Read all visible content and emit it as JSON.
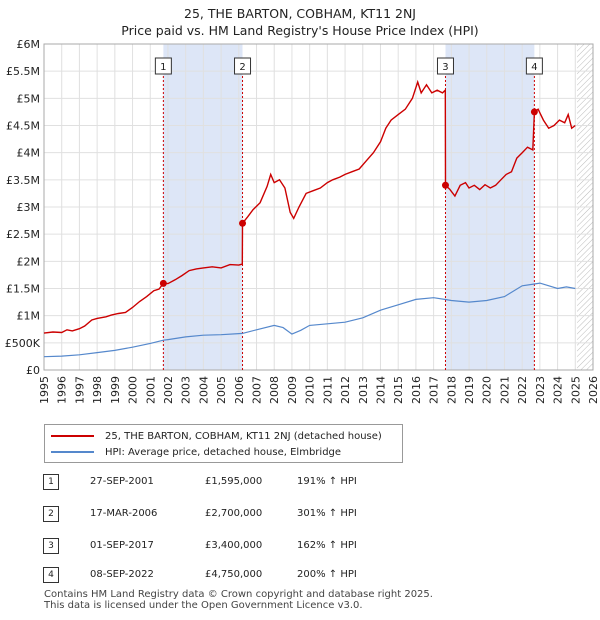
{
  "title_line1": "25, THE BARTON, COBHAM, KT11 2NJ",
  "title_line2": "Price paid vs. HM Land Registry's House Price Index (HPI)",
  "legend": {
    "property_label": "25, THE BARTON, COBHAM, KT11 2NJ (detached house)",
    "hpi_label": "HPI: Average price, detached house, Elmbridge"
  },
  "colors": {
    "property": "#cc0000",
    "hpi": "#5588cc",
    "shade": "#dde6f7",
    "grid": "#e0e0e0",
    "marker_line": "#cc0000"
  },
  "sales": [
    {
      "num": "1",
      "date": "27-SEP-2001",
      "price": "£1,595,000",
      "hpi": "191% ↑ HPI"
    },
    {
      "num": "2",
      "date": "17-MAR-2006",
      "price": "£2,700,000",
      "hpi": "301% ↑ HPI"
    },
    {
      "num": "3",
      "date": "01-SEP-2017",
      "price": "£3,400,000",
      "hpi": "162% ↑ HPI"
    },
    {
      "num": "4",
      "date": "08-SEP-2022",
      "price": "£4,750,000",
      "hpi": "200% ↑ HPI"
    }
  ],
  "footer_line1": "Contains HM Land Registry data © Crown copyright and database right 2025.",
  "footer_line2": "This data is licensed under the Open Government Licence v3.0.",
  "chart_data": {
    "type": "line",
    "xlim": [
      1995,
      2026
    ],
    "ylim": [
      0,
      6000000
    ],
    "y_ticks": [
      {
        "value": 0,
        "label": "£0"
      },
      {
        "value": 500000,
        "label": "£500K"
      },
      {
        "value": 1000000,
        "label": "£1M"
      },
      {
        "value": 1500000,
        "label": "£1.5M"
      },
      {
        "value": 2000000,
        "label": "£2M"
      },
      {
        "value": 2500000,
        "label": "£2.5M"
      },
      {
        "value": 3000000,
        "label": "£3M"
      },
      {
        "value": 3500000,
        "label": "£3.5M"
      },
      {
        "value": 4000000,
        "label": "£4M"
      },
      {
        "value": 4500000,
        "label": "£4.5M"
      },
      {
        "value": 5000000,
        "label": "£5M"
      },
      {
        "value": 5500000,
        "label": "£5.5M"
      },
      {
        "value": 6000000,
        "label": "£6M"
      }
    ],
    "x_ticks": [
      "1995",
      "1996",
      "1997",
      "1998",
      "1999",
      "2000",
      "2001",
      "2002",
      "2003",
      "2004",
      "2005",
      "2006",
      "2007",
      "2008",
      "2009",
      "2010",
      "2011",
      "2012",
      "2013",
      "2014",
      "2015",
      "2016",
      "2017",
      "2018",
      "2019",
      "2020",
      "2021",
      "2022",
      "2023",
      "2024",
      "2025",
      "2026"
    ],
    "shaded_ranges": [
      [
        2001.74,
        2006.21
      ],
      [
        2017.67,
        2022.69
      ]
    ],
    "hatched_from": 2025.1,
    "sale_markers": [
      {
        "label": "1",
        "x": 2001.74,
        "y": 1595000
      },
      {
        "label": "2",
        "x": 2006.21,
        "y": 2700000
      },
      {
        "label": "3",
        "x": 2017.67,
        "y": 3400000
      },
      {
        "label": "4",
        "x": 2022.69,
        "y": 4750000
      }
    ],
    "series": [
      {
        "name": "25, THE BARTON, COBHAM, KT11 2NJ (detached house)",
        "points": [
          [
            1995.0,
            680000
          ],
          [
            1995.5,
            700000
          ],
          [
            1996.0,
            690000
          ],
          [
            1996.3,
            740000
          ],
          [
            1996.6,
            720000
          ],
          [
            1997.0,
            760000
          ],
          [
            1997.3,
            810000
          ],
          [
            1997.7,
            920000
          ],
          [
            1998.0,
            950000
          ],
          [
            1998.5,
            980000
          ],
          [
            1998.8,
            1010000
          ],
          [
            1999.2,
            1040000
          ],
          [
            1999.6,
            1060000
          ],
          [
            2000.0,
            1150000
          ],
          [
            2000.4,
            1260000
          ],
          [
            2000.8,
            1350000
          ],
          [
            2001.2,
            1460000
          ],
          [
            2001.5,
            1490000
          ],
          [
            2001.74,
            1595000
          ],
          [
            2002.0,
            1590000
          ],
          [
            2002.4,
            1660000
          ],
          [
            2002.8,
            1740000
          ],
          [
            2003.2,
            1830000
          ],
          [
            2003.6,
            1860000
          ],
          [
            2004.0,
            1880000
          ],
          [
            2004.5,
            1900000
          ],
          [
            2005.0,
            1880000
          ],
          [
            2005.5,
            1940000
          ],
          [
            2006.0,
            1930000
          ],
          [
            2006.2,
            1950000
          ],
          [
            2006.21,
            2700000
          ],
          [
            2006.5,
            2820000
          ],
          [
            2006.8,
            2950000
          ],
          [
            2007.2,
            3080000
          ],
          [
            2007.6,
            3380000
          ],
          [
            2007.8,
            3600000
          ],
          [
            2008.0,
            3450000
          ],
          [
            2008.3,
            3500000
          ],
          [
            2008.6,
            3350000
          ],
          [
            2008.9,
            2900000
          ],
          [
            2009.1,
            2790000
          ],
          [
            2009.4,
            3000000
          ],
          [
            2009.8,
            3250000
          ],
          [
            2010.2,
            3300000
          ],
          [
            2010.6,
            3350000
          ],
          [
            2011.0,
            3450000
          ],
          [
            2011.3,
            3500000
          ],
          [
            2011.7,
            3550000
          ],
          [
            2012.0,
            3600000
          ],
          [
            2012.4,
            3650000
          ],
          [
            2012.8,
            3700000
          ],
          [
            2013.2,
            3850000
          ],
          [
            2013.6,
            4000000
          ],
          [
            2014.0,
            4200000
          ],
          [
            2014.3,
            4450000
          ],
          [
            2014.6,
            4600000
          ],
          [
            2015.0,
            4700000
          ],
          [
            2015.4,
            4800000
          ],
          [
            2015.8,
            5000000
          ],
          [
            2016.1,
            5300000
          ],
          [
            2016.3,
            5100000
          ],
          [
            2016.6,
            5250000
          ],
          [
            2016.9,
            5100000
          ],
          [
            2017.2,
            5150000
          ],
          [
            2017.5,
            5100000
          ],
          [
            2017.66,
            5150000
          ],
          [
            2017.67,
            3400000
          ],
          [
            2017.9,
            3330000
          ],
          [
            2018.2,
            3200000
          ],
          [
            2018.5,
            3400000
          ],
          [
            2018.8,
            3450000
          ],
          [
            2019.0,
            3350000
          ],
          [
            2019.3,
            3400000
          ],
          [
            2019.6,
            3320000
          ],
          [
            2019.9,
            3410000
          ],
          [
            2020.2,
            3350000
          ],
          [
            2020.5,
            3400000
          ],
          [
            2020.8,
            3500000
          ],
          [
            2021.1,
            3600000
          ],
          [
            2021.4,
            3650000
          ],
          [
            2021.7,
            3900000
          ],
          [
            2022.0,
            4000000
          ],
          [
            2022.3,
            4100000
          ],
          [
            2022.6,
            4050000
          ],
          [
            2022.69,
            4750000
          ],
          [
            2022.9,
            4800000
          ],
          [
            2023.2,
            4600000
          ],
          [
            2023.5,
            4450000
          ],
          [
            2023.8,
            4500000
          ],
          [
            2024.1,
            4600000
          ],
          [
            2024.4,
            4550000
          ],
          [
            2024.6,
            4700000
          ],
          [
            2024.8,
            4450000
          ],
          [
            2025.0,
            4500000
          ]
        ]
      },
      {
        "name": "HPI: Average price, detached house, Elmbridge",
        "points": [
          [
            1995.0,
            245000
          ],
          [
            1996.0,
            255000
          ],
          [
            1997.0,
            280000
          ],
          [
            1998.0,
            320000
          ],
          [
            1999.0,
            360000
          ],
          [
            2000.0,
            420000
          ],
          [
            2001.0,
            490000
          ],
          [
            2001.74,
            548000
          ],
          [
            2002.0,
            560000
          ],
          [
            2003.0,
            610000
          ],
          [
            2004.0,
            640000
          ],
          [
            2005.0,
            650000
          ],
          [
            2006.0,
            670000
          ],
          [
            2006.21,
            673000
          ],
          [
            2007.0,
            740000
          ],
          [
            2008.0,
            820000
          ],
          [
            2008.5,
            780000
          ],
          [
            2009.0,
            660000
          ],
          [
            2009.5,
            730000
          ],
          [
            2010.0,
            820000
          ],
          [
            2011.0,
            850000
          ],
          [
            2012.0,
            880000
          ],
          [
            2013.0,
            960000
          ],
          [
            2014.0,
            1100000
          ],
          [
            2015.0,
            1200000
          ],
          [
            2016.0,
            1300000
          ],
          [
            2017.0,
            1330000
          ],
          [
            2017.67,
            1298000
          ],
          [
            2018.0,
            1280000
          ],
          [
            2019.0,
            1250000
          ],
          [
            2020.0,
            1280000
          ],
          [
            2021.0,
            1350000
          ],
          [
            2022.0,
            1550000
          ],
          [
            2022.69,
            1583000
          ],
          [
            2023.0,
            1600000
          ],
          [
            2024.0,
            1500000
          ],
          [
            2024.5,
            1530000
          ],
          [
            2025.0,
            1500000
          ]
        ]
      }
    ]
  }
}
